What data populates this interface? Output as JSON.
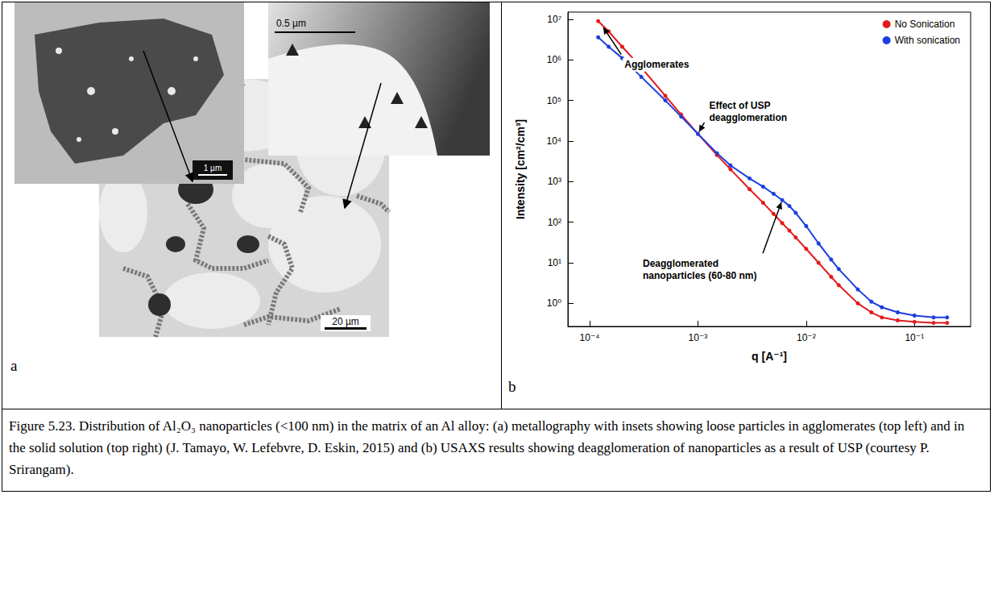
{
  "panel_a": {
    "letter": "a",
    "main_scale_bar": "20 µm",
    "insets": [
      {
        "scale_bar": "1 µm"
      },
      {
        "scale_bar": "0.5 µm"
      }
    ]
  },
  "panel_b": {
    "letter": "b"
  },
  "chart_data": {
    "type": "line",
    "x_label": "q [A⁻¹]",
    "y_label": "Intensity [cm²/cm³]",
    "x": [
      0.00012,
      0.00015,
      0.0002,
      0.0003,
      0.0005,
      0.0007,
      0.001,
      0.0015,
      0.002,
      0.003,
      0.004,
      0.005,
      0.006,
      0.007,
      0.008,
      0.01,
      0.013,
      0.017,
      0.02,
      0.03,
      0.04,
      0.05,
      0.07,
      0.1,
      0.15,
      0.2
    ],
    "series": [
      {
        "name": "No Sonication",
        "color": "#e31a1c",
        "marker": "circle",
        "values": [
          9000000,
          5000000,
          2100000,
          650000,
          130000,
          45000,
          15000,
          4500,
          2000,
          650,
          300,
          160,
          95,
          62,
          42,
          22,
          10,
          4.5,
          2.8,
          1.0,
          0.6,
          0.45,
          0.38,
          0.35,
          0.33,
          0.33
        ]
      },
      {
        "name": "With sonication",
        "color": "#1c3fe0",
        "marker": "circle",
        "values": [
          3600000,
          2100000,
          1100000,
          380000,
          100000,
          40000,
          15000,
          5000,
          2500,
          1200,
          750,
          500,
          350,
          250,
          170,
          80,
          30,
          12,
          7,
          2.2,
          1.1,
          0.8,
          0.6,
          0.5,
          0.45,
          0.45
        ]
      }
    ],
    "xlim": [
      6.3e-05,
      0.33
    ],
    "ylim": [
      0.27,
      15000000
    ],
    "xticks": [
      {
        "value": 0.0001,
        "label": "10⁻⁴"
      },
      {
        "value": 0.001,
        "label": "10⁻³"
      },
      {
        "value": 0.01,
        "label": "10⁻²"
      },
      {
        "value": 0.1,
        "label": "10⁻¹"
      }
    ],
    "yticks": [
      {
        "value": 1,
        "label": "10⁰"
      },
      {
        "value": 10,
        "label": "10¹"
      },
      {
        "value": 100,
        "label": "10²"
      },
      {
        "value": 1000,
        "label": "10³"
      },
      {
        "value": 10000,
        "label": "10⁴"
      },
      {
        "value": 100000,
        "label": "10⁵"
      },
      {
        "value": 1000000,
        "label": "10⁶"
      },
      {
        "value": 10000000,
        "label": "10⁷"
      }
    ],
    "log": true,
    "grid": false,
    "legend": "upper right",
    "annotations": [
      {
        "text": "Agglomerates",
        "x": 0.00013,
        "y": 7000000
      },
      {
        "text": "Effect of USP deagglomeration",
        "x": 0.001,
        "y": 15000
      },
      {
        "text": "Deagglomerated nanoparticles (60-80 nm)",
        "x": 0.006,
        "y": 350
      }
    ]
  },
  "caption": "Figure 5.23. Distribution of Al₂O₃ nanoparticles (<100 nm) in the matrix of an Al alloy: (a) metallography with insets showing loose particles in agglomerates (top left) and in the solid solution (top right) (J. Tamayo, W. Lefebvre, D. Eskin, 2015) and (b)  USAXS results showing deagglomeration of nanoparticles as a result of USP (courtesy P. Srirangam)."
}
